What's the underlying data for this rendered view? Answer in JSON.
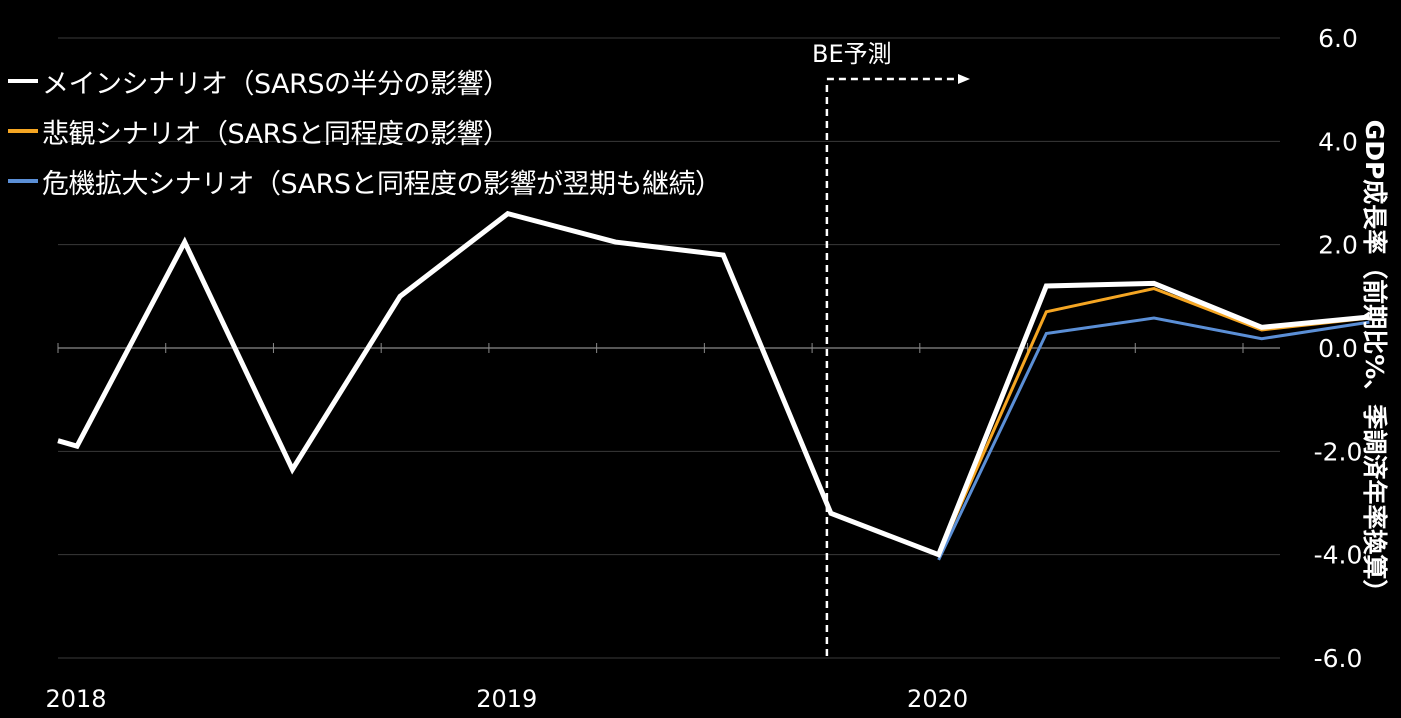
{
  "chart_data": {
    "type": "line",
    "title": "",
    "ylabel": "GDP成長率（前期比%、季調済年率換算）",
    "ylim": [
      -6.0,
      6.0
    ],
    "yticks": [
      "6.0",
      "4.0",
      "2.0",
      "0.0",
      "-2.0",
      "-4.0",
      "-6.0"
    ],
    "ytick_values": [
      6,
      4,
      2,
      0,
      -2,
      -4,
      -6
    ],
    "x_tick_labels": [
      {
        "label": "2018",
        "year": 2018
      },
      {
        "label": "2019",
        "year": 2019
      },
      {
        "label": "2020",
        "year": 2020
      }
    ],
    "forecast_label": "BE予測",
    "forecast_start": "2019-Q4",
    "series": [
      {
        "name": "メインシナリオ（SARSの半分の影響）",
        "color": "#ffffff",
        "points": [
          [
            "2017-Q4",
            -1.3
          ],
          [
            "2018-Q1",
            -1.9
          ],
          [
            "2018-Q2",
            2.05
          ],
          [
            "2018-Q3",
            -2.35
          ],
          [
            "2018-Q4",
            1.0
          ],
          [
            "2019-Q1",
            2.6
          ],
          [
            "2019-Q2",
            2.05
          ],
          [
            "2019-Q3",
            1.8
          ],
          [
            "2019-Q4",
            -3.2
          ],
          [
            "2020-Q1",
            -4.0
          ],
          [
            "2020-Q2",
            1.2
          ],
          [
            "2020-Q3",
            1.25
          ],
          [
            "2020-Q4",
            0.4
          ],
          [
            "2021-Q1",
            0.6
          ]
        ]
      },
      {
        "name": "悲観シナリオ（SARSと同程度の影響）",
        "color": "#f5a623",
        "points": [
          [
            "2020-Q1",
            -4.0
          ],
          [
            "2020-Q2",
            0.7
          ],
          [
            "2020-Q3",
            1.15
          ],
          [
            "2020-Q4",
            0.35
          ],
          [
            "2021-Q1",
            0.58
          ]
        ]
      },
      {
        "name": "危機拡大シナリオ（SARSと同程度の影響が翌期も継続）",
        "color": "#5b8fd6",
        "points": [
          [
            "2020-Q1",
            -4.1
          ],
          [
            "2020-Q2",
            0.28
          ],
          [
            "2020-Q3",
            0.58
          ],
          [
            "2020-Q4",
            0.18
          ],
          [
            "2021-Q1",
            0.5
          ]
        ]
      }
    ],
    "grid": true,
    "legend_position": "top-left"
  }
}
